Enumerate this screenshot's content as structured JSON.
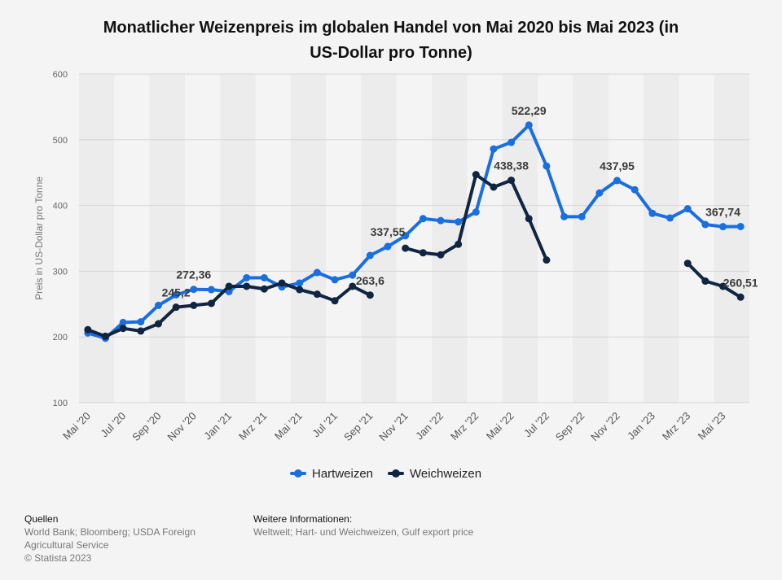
{
  "chart_data": {
    "type": "line",
    "title": "Monatlicher Weizenpreis im globalen Handel von Mai 2020 bis Mai 2023 (in US-Dollar pro Tonne)",
    "title_lines": [
      "Monatlicher Weizenpreis im globalen Handel von Mai 2020 bis Mai 2023 (in",
      "US-Dollar pro Tonne)"
    ],
    "ylabel": "Preis in US-Dollar pro Tonne",
    "xlabel": "",
    "ylim": [
      100,
      600
    ],
    "yticks": [
      100,
      200,
      300,
      400,
      500,
      600
    ],
    "grid": true,
    "legend_position": "bottom-center",
    "x_labels": [
      {
        "index": 0,
        "label": "Mai '20"
      },
      {
        "index": 2,
        "label": "Jul '20"
      },
      {
        "index": 4,
        "label": "Sep '20"
      },
      {
        "index": 6,
        "label": "Nov '20"
      },
      {
        "index": 8,
        "label": "Jan '21"
      },
      {
        "index": 10,
        "label": "Mrz '21"
      },
      {
        "index": 12,
        "label": "Mai '21"
      },
      {
        "index": 14,
        "label": "Jul '21"
      },
      {
        "index": 16,
        "label": "Sep '21"
      },
      {
        "index": 18,
        "label": "Nov '21"
      },
      {
        "index": 20,
        "label": "Jan '22"
      },
      {
        "index": 22,
        "label": "Mrz '22"
      },
      {
        "index": 24,
        "label": "Mai '22"
      },
      {
        "index": 26,
        "label": "Jul '22"
      },
      {
        "index": 28,
        "label": "Sep '22"
      },
      {
        "index": 30,
        "label": "Nov '22"
      },
      {
        "index": 32,
        "label": "Jan '23"
      },
      {
        "index": 34,
        "label": "Mrz '23"
      },
      {
        "index": 36,
        "label": "Mai '23"
      }
    ],
    "series": [
      {
        "name": "Hartweizen",
        "color": "#1a6fe0",
        "values": [
          206,
          198,
          222,
          223,
          248,
          264,
          272.36,
          272,
          269,
          290,
          290,
          276,
          282,
          298,
          287,
          294,
          324,
          337.55,
          354,
          380,
          377,
          375,
          390,
          486,
          496,
          522.29,
          460,
          383,
          383,
          419,
          437.95,
          424,
          388,
          381,
          395,
          371,
          367.74,
          368
        ]
      },
      {
        "name": "Weichweizen",
        "color": "#0f2541",
        "values": [
          211,
          201,
          213,
          209,
          220,
          245.2,
          248,
          251,
          277,
          277,
          273,
          282,
          272,
          265,
          255,
          277,
          263.6,
          null,
          335,
          328,
          325,
          341,
          447,
          428,
          438.38,
          380,
          317,
          null,
          null,
          null,
          null,
          null,
          null,
          null,
          312,
          285,
          277,
          260.51
        ]
      }
    ],
    "data_labels": [
      {
        "series": 0,
        "index": 6,
        "text": "272,36"
      },
      {
        "series": 1,
        "index": 5,
        "text": "245,2"
      },
      {
        "series": 0,
        "index": 17,
        "text": "337,55"
      },
      {
        "series": 1,
        "index": 16,
        "text": "263,6"
      },
      {
        "series": 0,
        "index": 25,
        "text": "522,29"
      },
      {
        "series": 1,
        "index": 24,
        "text": "438,38"
      },
      {
        "series": 0,
        "index": 30,
        "text": "437,95"
      },
      {
        "series": 0,
        "index": 36,
        "text": "367,74"
      },
      {
        "series": 1,
        "index": 37,
        "text": "260,51"
      }
    ]
  },
  "legend": {
    "items": [
      {
        "label": "Hartweizen",
        "color": "#1a6fe0"
      },
      {
        "label": "Weichweizen",
        "color": "#0f2541"
      }
    ]
  },
  "footer": {
    "sources_head": "Quellen",
    "sources_body": "World Bank; Bloomberg; USDA Foreign\nAgricultural Service\n© Statista 2023",
    "info_head": "Weitere Informationen:",
    "info_body": "Weltweit; Hart- und Weichweizen, Gulf export price"
  }
}
